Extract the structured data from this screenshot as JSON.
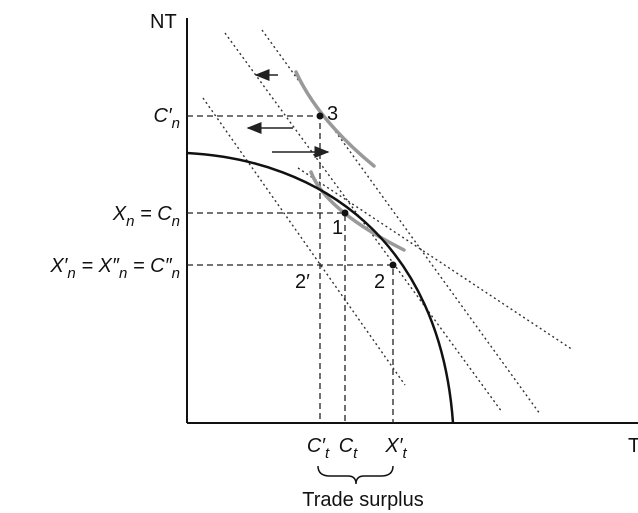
{
  "axes": {
    "y_label": "NT",
    "x_label": "T"
  },
  "y_labels": [
    [
      [
        "C′",
        "n"
      ]
    ],
    [
      [
        "X",
        "n"
      ],
      [
        " = C",
        "n"
      ]
    ],
    [
      [
        "X′",
        "n"
      ],
      [
        " = X″",
        "n"
      ],
      [
        " = C″",
        "n"
      ]
    ]
  ],
  "x_labels": [
    [
      [
        "C′",
        "t"
      ]
    ],
    [
      [
        "C",
        "t"
      ]
    ],
    [
      [
        "X′",
        "t"
      ]
    ]
  ],
  "points": [
    "3",
    "1",
    "2",
    "2′"
  ],
  "brace_label": "Trade surplus"
}
